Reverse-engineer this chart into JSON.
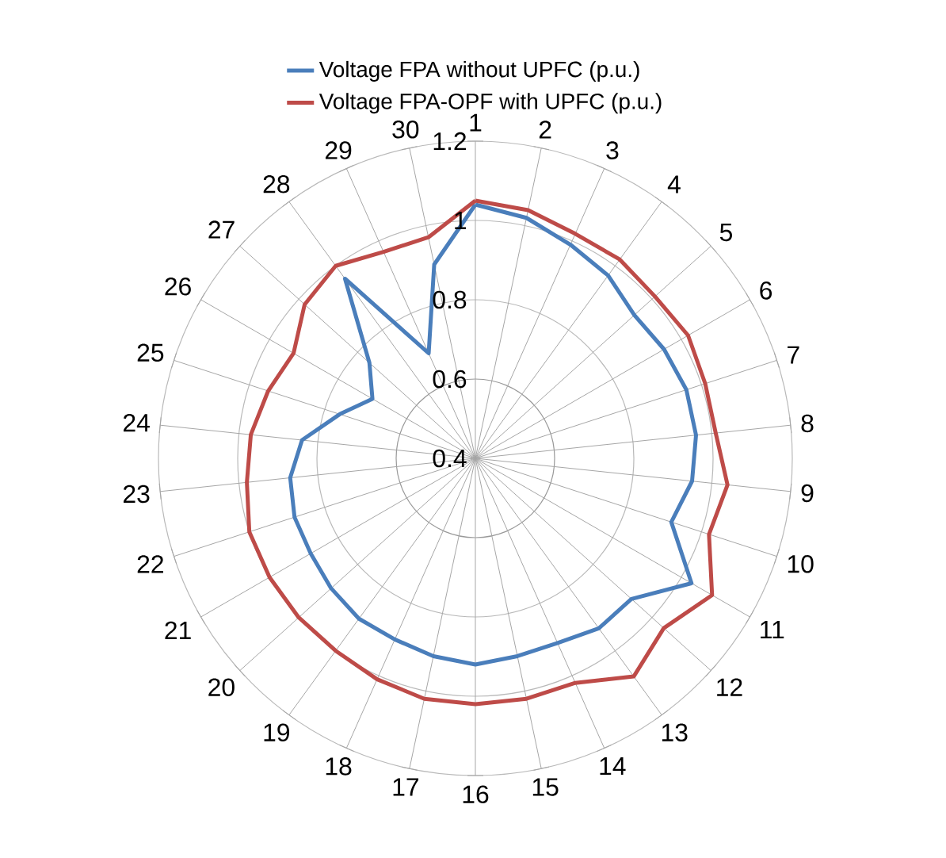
{
  "chart_data": {
    "type": "radar",
    "categories": [
      "1",
      "2",
      "3",
      "4",
      "5",
      "6",
      "7",
      "8",
      "9",
      "10",
      "11",
      "12",
      "13",
      "14",
      "15",
      "16",
      "17",
      "18",
      "19",
      "20",
      "21",
      "22",
      "23",
      "24",
      "25",
      "26",
      "27",
      "28",
      "29",
      "30"
    ],
    "series": [
      {
        "name": "Voltage FPA without UPFC  (p.u.)",
        "color": "#4a7ebb",
        "values": [
          1.04,
          1.02,
          0.99,
          0.97,
          0.94,
          0.95,
          0.96,
          0.96,
          0.95,
          0.92,
          1.03,
          0.93,
          0.93,
          0.91,
          0.91,
          0.92,
          0.91,
          0.9,
          0.9,
          0.89,
          0.88,
          0.88,
          0.87,
          0.84,
          0.76,
          0.7,
          0.76,
          0.96,
          0.69,
          0.9
        ]
      },
      {
        "name": "Voltage FPA-OPF with UPFC (p.u.)",
        "color": "#be4b48",
        "values": [
          1.05,
          1.04,
          1.02,
          1.02,
          1.01,
          1.02,
          1.01,
          1.01,
          1.04,
          1.02,
          1.09,
          1.04,
          1.08,
          1.02,
          1.02,
          1.02,
          1.02,
          1.01,
          1.0,
          1.0,
          1.0,
          1.0,
          0.98,
          0.97,
          0.95,
          0.93,
          0.98,
          1.0,
          0.97,
          0.97
        ]
      }
    ],
    "ylim": [
      0.4,
      1.2
    ],
    "yticks": [
      0.4,
      0.6,
      0.8,
      1,
      1.2
    ],
    "grid": true,
    "legend": "top"
  }
}
